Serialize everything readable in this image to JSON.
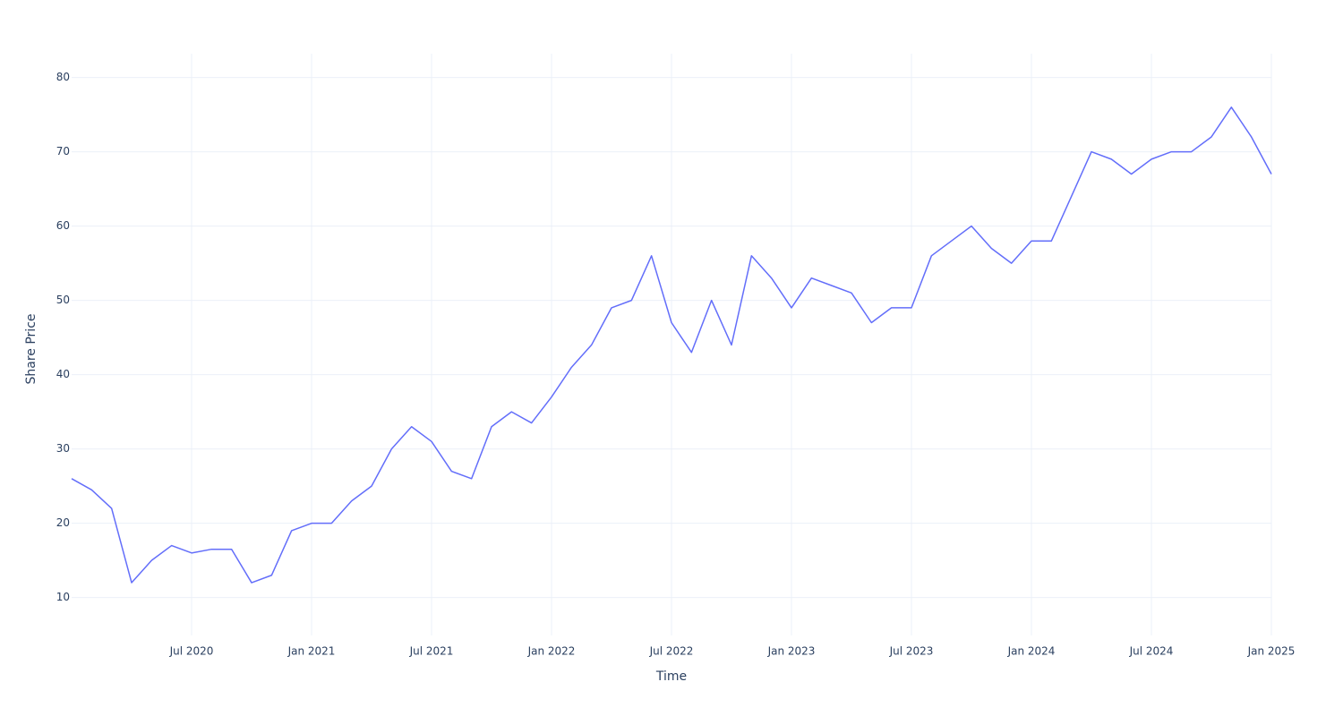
{
  "chart_data": {
    "type": "line",
    "x_label": "Time",
    "y_label": "Share Price",
    "x": [
      "2020-01",
      "2020-02",
      "2020-03",
      "2020-04",
      "2020-05",
      "2020-06",
      "2020-07",
      "2020-08",
      "2020-09",
      "2020-10",
      "2020-11",
      "2020-12",
      "2021-01",
      "2021-02",
      "2021-03",
      "2021-04",
      "2021-05",
      "2021-06",
      "2021-07",
      "2021-08",
      "2021-09",
      "2021-10",
      "2021-11",
      "2021-12",
      "2022-01",
      "2022-02",
      "2022-03",
      "2022-04",
      "2022-05",
      "2022-06",
      "2022-07",
      "2022-08",
      "2022-09",
      "2022-10",
      "2022-11",
      "2022-12",
      "2023-01",
      "2023-02",
      "2023-03",
      "2023-04",
      "2023-05",
      "2023-06",
      "2023-07",
      "2023-08",
      "2023-09",
      "2023-10",
      "2023-11",
      "2023-12",
      "2024-01",
      "2024-02",
      "2024-03",
      "2024-04",
      "2024-05",
      "2024-06",
      "2024-07",
      "2024-08",
      "2024-09",
      "2024-10",
      "2024-11",
      "2024-12",
      "2025-01"
    ],
    "series": [
      {
        "color": "#636efa",
        "values": [
          26,
          24.5,
          22,
          12,
          15,
          17,
          16,
          16.5,
          16.5,
          12,
          13,
          19,
          20,
          20,
          23,
          25,
          30,
          33,
          31,
          27,
          26,
          33,
          35,
          33.5,
          37,
          41,
          44,
          49,
          50,
          56,
          47,
          43,
          50,
          44,
          56,
          53,
          49,
          53,
          52,
          51,
          47,
          49,
          49,
          56,
          58,
          60,
          57,
          55,
          58,
          58,
          64,
          70,
          69,
          67,
          69,
          70,
          70,
          72,
          76,
          72,
          67
        ]
      }
    ],
    "xlim": [
      "2020-01",
      "2025-01"
    ],
    "xticks": [
      {
        "value": "2020-07",
        "label": "Jul 2020"
      },
      {
        "value": "2021-01",
        "label": "Jan 2021"
      },
      {
        "value": "2021-07",
        "label": "Jul 2021"
      },
      {
        "value": "2022-01",
        "label": "Jan 2022"
      },
      {
        "value": "2022-07",
        "label": "Jul 2022"
      },
      {
        "value": "2023-01",
        "label": "Jan 2023"
      },
      {
        "value": "2023-07",
        "label": "Jul 2023"
      },
      {
        "value": "2024-01",
        "label": "Jan 2024"
      },
      {
        "value": "2024-07",
        "label": "Jul 2024"
      },
      {
        "value": "2025-01",
        "label": "Jan 2025"
      }
    ],
    "ylim": [
      4.9,
      83.2
    ],
    "yticks": [
      10,
      20,
      30,
      40,
      50,
      60,
      70,
      80
    ],
    "grid": true
  }
}
